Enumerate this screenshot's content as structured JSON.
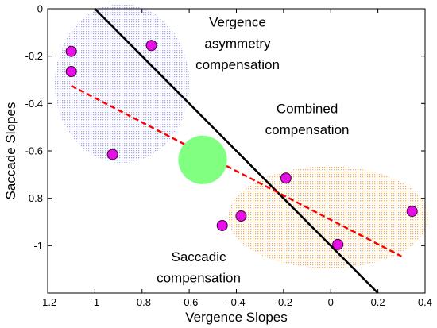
{
  "chart_data": {
    "type": "scatter",
    "xlabel": "Vergence Slopes",
    "ylabel": "Saccade Slopes",
    "xlim": [
      -1.2,
      0.4
    ],
    "ylim": [
      -1.2,
      0
    ],
    "xticks": [
      "-1.2",
      "-1",
      "-0.8",
      "-0.6",
      "-0.4",
      "-0.2",
      "0",
      "0.2",
      "0.4"
    ],
    "yticks": [
      "0",
      "-0.2",
      "-0.4",
      "-0.6",
      "-0.8",
      "-1"
    ],
    "grid": false,
    "colors": {
      "points": "#e60fe6",
      "fit_line": "#ff0000",
      "reference_line": "#000000",
      "center_circle": "#80ff80",
      "vergence_region": "#b4b4f0",
      "saccadic_region": "#f5c878"
    },
    "points": [
      {
        "x": -1.1,
        "y": -0.18
      },
      {
        "x": -1.1,
        "y": -0.265
      },
      {
        "x": -0.76,
        "y": -0.155
      },
      {
        "x": -0.925,
        "y": -0.615
      },
      {
        "x": -0.19,
        "y": -0.715
      },
      {
        "x": -0.38,
        "y": -0.875
      },
      {
        "x": -0.46,
        "y": -0.915
      },
      {
        "x": 0.03,
        "y": -0.995
      },
      {
        "x": 0.345,
        "y": -0.855
      }
    ],
    "lines": [
      {
        "style": "solid",
        "x": [
          -1.0,
          0.2
        ],
        "y": [
          0.0,
          -1.2
        ]
      },
      {
        "style": "dashed",
        "x": [
          -1.1,
          0.3
        ],
        "y": [
          -0.325,
          -1.045
        ]
      }
    ],
    "regions": [
      {
        "cx": -0.885,
        "cy": -0.315,
        "rx": 0.285,
        "ry": 0.335
      },
      {
        "cx": -0.01,
        "cy": -0.88,
        "rx": 0.425,
        "ry": 0.215
      }
    ],
    "center_circle": {
      "cx": -0.543,
      "cy": -0.638,
      "r": 0.103
    },
    "annotations": [
      {
        "lines": [
          "Vergence",
          "asymmetry",
          "compensation"
        ],
        "x": -0.395,
        "y": [
          -0.055,
          -0.145,
          -0.235
        ]
      },
      {
        "lines": [
          "Combined",
          "compensation"
        ],
        "x": -0.1,
        "y": [
          -0.42,
          -0.51
        ]
      },
      {
        "lines": [
          "Saccadic",
          "compensation"
        ],
        "x": -0.56,
        "y": [
          -1.045,
          -1.135
        ]
      }
    ]
  }
}
